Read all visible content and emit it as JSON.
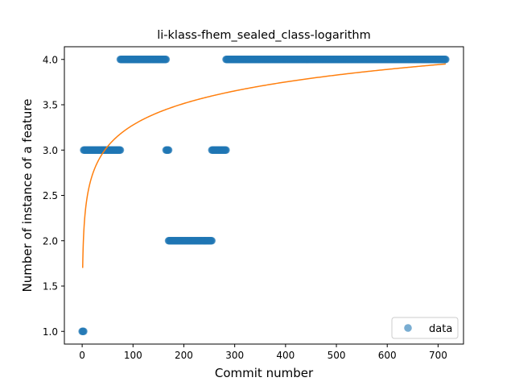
{
  "chart_data": {
    "type": "scatter",
    "title": "li-klass-fhem_sealed_class-logarithm",
    "xlabel": "Commit number",
    "ylabel": "Number of instance of a feature",
    "xlim": [
      -35,
      750
    ],
    "ylim": [
      0.86,
      4.14
    ],
    "xticks": [
      0,
      100,
      200,
      300,
      400,
      500,
      600,
      700
    ],
    "xtick_labels": [
      "0",
      "100",
      "200",
      "300",
      "400",
      "500",
      "600",
      "700"
    ],
    "yticks": [
      1.0,
      1.5,
      2.0,
      2.5,
      3.0,
      3.5,
      4.0
    ],
    "ytick_labels": [
      "1.0",
      "1.5",
      "2.0",
      "2.5",
      "3.0",
      "3.5",
      "4.0"
    ],
    "grid": false,
    "legend": {
      "placement": "lower-right",
      "entries": [
        "data"
      ]
    },
    "series": [
      {
        "name": "data",
        "kind": "scatter",
        "color": "#1f77b4",
        "segments": [
          {
            "x_start": 0,
            "x_end": 3,
            "y": 1
          },
          {
            "x_start": 3,
            "x_end": 75,
            "y": 3
          },
          {
            "x_start": 75,
            "x_end": 165,
            "y": 4
          },
          {
            "x_start": 165,
            "x_end": 170,
            "y": 3
          },
          {
            "x_start": 170,
            "x_end": 255,
            "y": 2
          },
          {
            "x_start": 255,
            "x_end": 283,
            "y": 3
          },
          {
            "x_start": 283,
            "x_end": 715,
            "y": 4
          }
        ]
      },
      {
        "kind": "line",
        "color": "#ff7f0e",
        "model": "logarithmic",
        "x_range": [
          1,
          715
        ],
        "y_at_start": 1.7,
        "y_at_end": 3.95
      }
    ]
  }
}
